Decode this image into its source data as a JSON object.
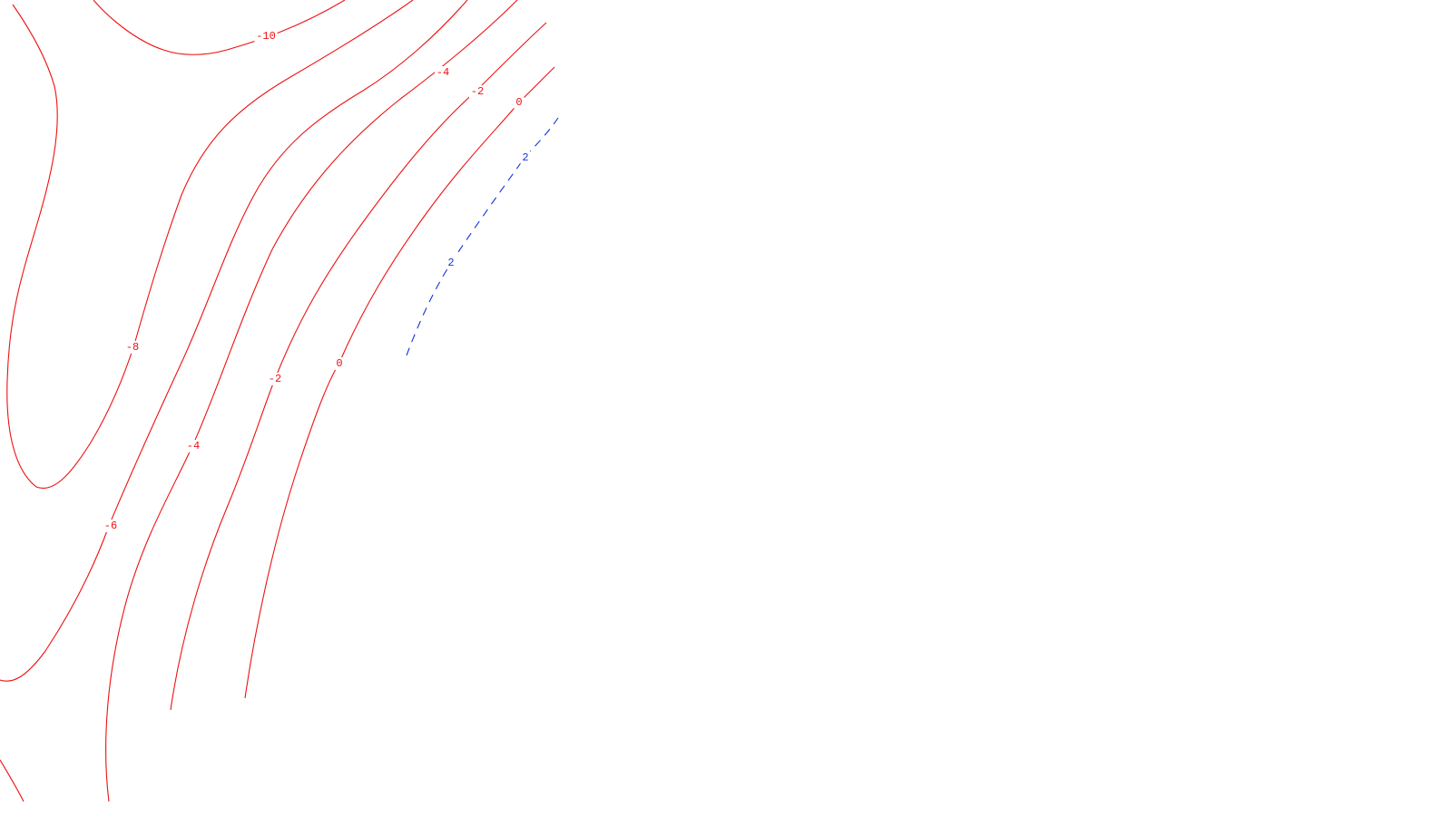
{
  "chart_data": {
    "type": "contour",
    "title": "",
    "xlabel": "",
    "ylabel": "",
    "grid": false,
    "colors": {
      "negative": "#ee1111",
      "zero": "#ee1111",
      "positive": "#1133dd",
      "background": "#ffffff"
    },
    "levels": [
      {
        "value": -10,
        "label": "-10",
        "style": "solid",
        "color": "#ee1111"
      },
      {
        "value": -8,
        "label": "-8",
        "style": "solid",
        "color": "#ee1111"
      },
      {
        "value": -6,
        "label": "-6",
        "style": "solid",
        "color": "#ee1111"
      },
      {
        "value": -4,
        "label": "-4",
        "style": "solid",
        "color": "#ee1111"
      },
      {
        "value": -2,
        "label": "-2",
        "style": "solid",
        "color": "#ee1111"
      },
      {
        "value": 0,
        "label": "0",
        "style": "solid",
        "color": "#ee1111"
      },
      {
        "value": 2,
        "label": "2",
        "style": "dashed",
        "color": "#1133dd"
      }
    ]
  }
}
